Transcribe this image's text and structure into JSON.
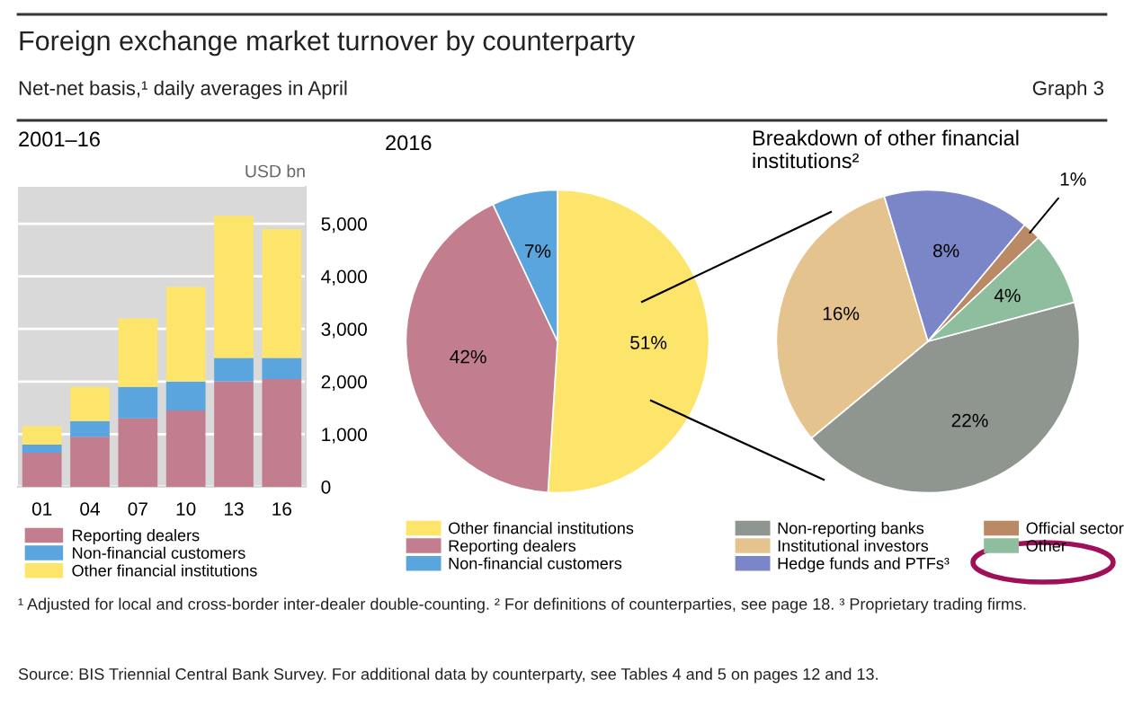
{
  "chart_data": [
    {
      "type": "bar",
      "title": "2001–16",
      "ylabel": "USD bn",
      "stacked": true,
      "categories": [
        "01",
        "04",
        "07",
        "10",
        "13",
        "16"
      ],
      "series": [
        {
          "name": "Reporting dealers",
          "color": "#c27e8e",
          "values": [
            650,
            950,
            1300,
            1450,
            2000,
            2050
          ]
        },
        {
          "name": "Non-financial customers",
          "color": "#5aa5de",
          "values": [
            150,
            300,
            600,
            550,
            450,
            400
          ]
        },
        {
          "name": "Other financial institutions",
          "color": "#fde56c",
          "values": [
            350,
            650,
            1300,
            1800,
            2700,
            2450
          ]
        }
      ],
      "ylim": [
        0,
        5700
      ],
      "yticks": [
        0,
        {
          "value": 1000,
          "label": "1,000"
        },
        {
          "value": 2000,
          "label": "2,000"
        },
        {
          "value": 3000,
          "label": "3,000"
        },
        {
          "value": 4000,
          "label": "4,000"
        },
        {
          "value": 5000,
          "label": "5,000"
        }
      ],
      "grid": "y",
      "legend": "bottom",
      "annotations": [
        "Foreign exchange market turnover by counterparty",
        "Net-net basis,¹ daily averages in April",
        "Graph 3",
        "¹ Adjusted for local and cross-border inter-dealer double-counting. ² For definitions of counterparties, see page 18. ³ Proprietary trading firms.",
        "Source: BIS Triennial Central Bank Survey. For additional data by counterparty, see Tables 4 and 5 on pages 12 and 13."
      ]
    },
    {
      "type": "pie",
      "title": "2016",
      "categories": [
        "Other financial institutions",
        "Reporting dealers",
        "Non-financial customers"
      ],
      "values": [
        51,
        42,
        7
      ],
      "colors": [
        "#fde56c",
        "#c27e8e",
        "#5aa5de"
      ],
      "value_labels": [
        "51%",
        "42%",
        "7%"
      ],
      "legend": "bottom"
    },
    {
      "type": "pie",
      "title": "Breakdown of other financial institutions²",
      "categories": [
        "Non-reporting banks",
        "Institutional investors",
        "Hedge funds and PTFs³",
        "Official sector",
        "Other"
      ],
      "values": [
        22,
        16,
        8,
        1,
        4
      ],
      "colors": [
        "#8f9690",
        "#e5c38f",
        "#7b86c8",
        "#b98a65",
        "#8fbe9f"
      ],
      "value_labels": [
        "22%",
        "16%",
        "8%",
        "1%",
        "4%"
      ],
      "legend": "bottom"
    }
  ]
}
